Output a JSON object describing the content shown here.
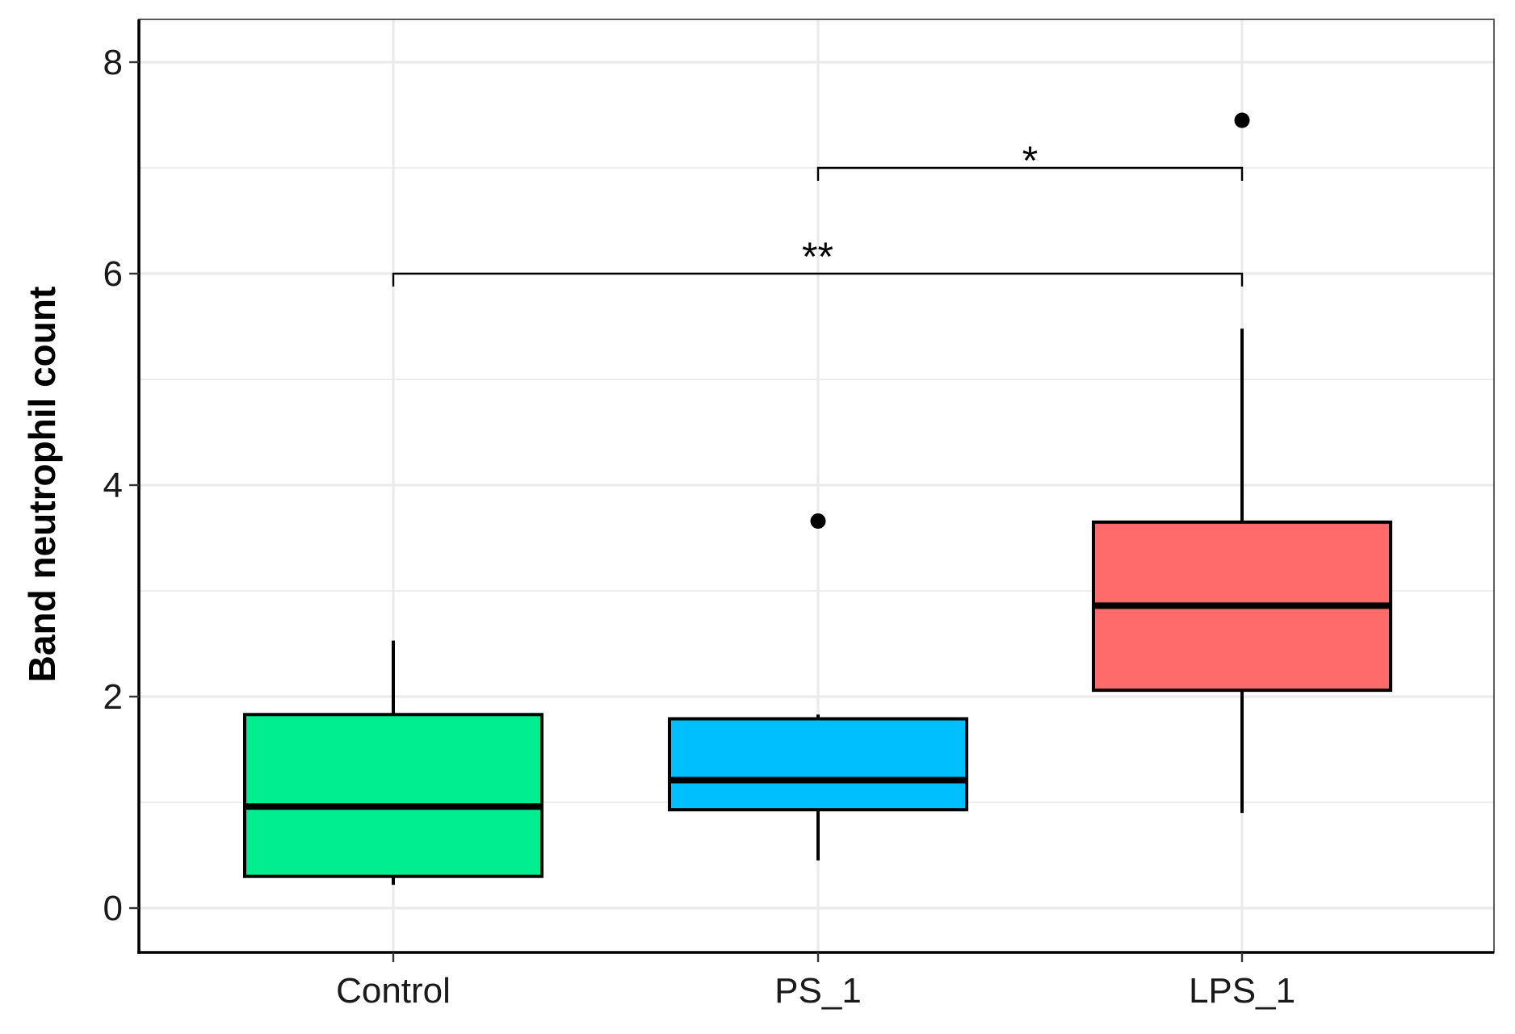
{
  "chart_data": {
    "type": "box",
    "title": "",
    "xlabel": "",
    "ylabel": "Band neutrophil count",
    "ylim": [
      -0.4,
      8.4
    ],
    "y_ticks": [
      0,
      2,
      4,
      6,
      8
    ],
    "y_tick_labels": [
      "0",
      "2",
      "4",
      "6",
      "8"
    ],
    "grid": true,
    "legend": "none",
    "categories": [
      "Control",
      "PS_1",
      "LPS_1"
    ],
    "boxes": [
      {
        "name": "Control",
        "whisker_low": 0.22,
        "q1": 0.3,
        "median": 0.96,
        "q3": 1.83,
        "whisker_high": 2.53,
        "outliers": [],
        "color": "#00EE90"
      },
      {
        "name": "PS_1",
        "whisker_low": 0.45,
        "q1": 0.93,
        "median": 1.21,
        "q3": 1.79,
        "whisker_high": 1.83,
        "outliers": [
          3.66
        ],
        "color": "#00BFFF"
      },
      {
        "name": "LPS_1",
        "whisker_low": 0.9,
        "q1": 2.06,
        "median": 2.86,
        "q3": 3.65,
        "whisker_high": 5.48,
        "outliers": [
          7.45
        ],
        "color": "#FF6B6B"
      }
    ],
    "significance": [
      {
        "from": "PS_1",
        "to": "LPS_1",
        "y": 7.0,
        "label": "*"
      },
      {
        "from": "Control",
        "to": "LPS_1",
        "y": 6.0,
        "label": "**"
      }
    ]
  }
}
